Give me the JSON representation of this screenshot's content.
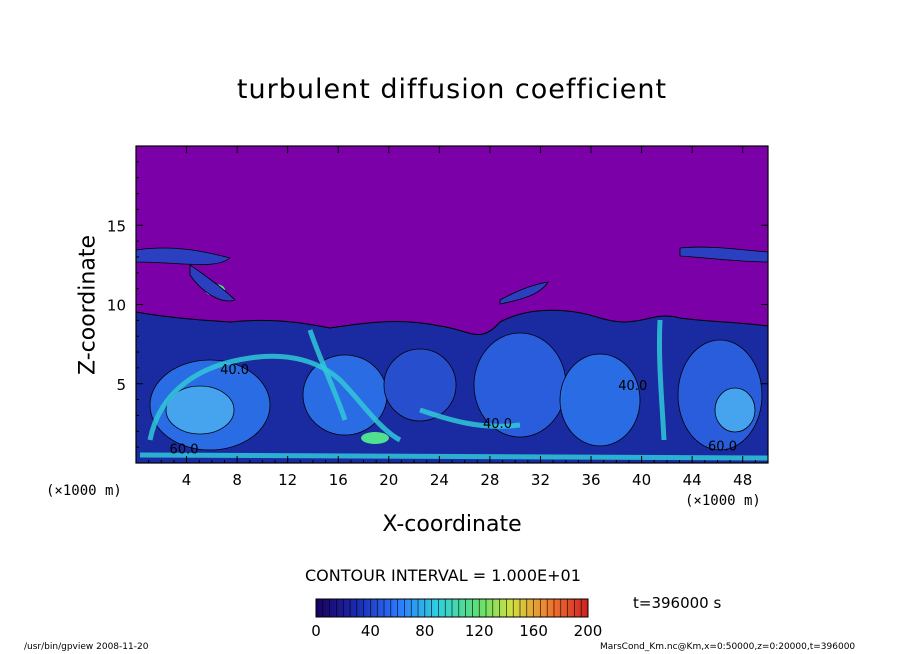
{
  "chart_data": {
    "type": "heatmap",
    "title": "turbulent diffusion coefficient",
    "xlabel": "X-coordinate",
    "ylabel": "Z-coordinate",
    "x_unit": "(×1000 m)",
    "y_unit": "(×1000 m)",
    "xlim": [
      0,
      50
    ],
    "ylim": [
      0,
      20
    ],
    "x_ticks": [
      4,
      8,
      12,
      16,
      20,
      24,
      28,
      32,
      36,
      40,
      44,
      48
    ],
    "y_ticks": [
      5,
      10,
      15
    ],
    "contour_interval": "CONTOUR INTERVAL = 1.000E+01",
    "contour_labels": [
      {
        "x": 7.8,
        "z": 5.6,
        "text": "40.0"
      },
      {
        "x": 3.8,
        "z": 0.6,
        "text": "60.0"
      },
      {
        "x": 28.6,
        "z": 2.2,
        "text": "40.0"
      },
      {
        "x": 46.4,
        "z": 0.8,
        "text": "60.0"
      },
      {
        "x": 39.3,
        "z": 4.6,
        "text": "40.0"
      }
    ],
    "colorbar": {
      "min": 0,
      "max": 200,
      "ticks": [
        "0",
        "40",
        "80",
        "120",
        "160",
        "200"
      ]
    },
    "time": "t=396000 s",
    "colors": {
      "background": "#7b00a8",
      "low": "#1a2aa0",
      "mid": "#2a70e8",
      "high": "#30c8d8",
      "peak": "#50e090"
    }
  },
  "footer": {
    "left": "/usr/bin/gpview   2008-11-20",
    "right": "MarsCond_Km.nc@Km,x=0:50000,z=0:20000,t=396000"
  }
}
